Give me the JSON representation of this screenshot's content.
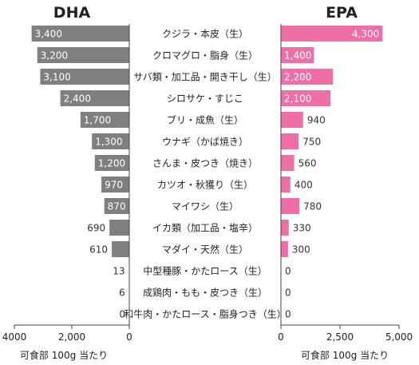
{
  "chart_data": [
    {
      "type": "bar",
      "orientation": "horizontal",
      "title": "DHA",
      "xlabel": "可食部 100g 当たり",
      "xlim": [
        0,
        4000
      ],
      "xticks": [
        "4000",
        "2,000",
        "0"
      ],
      "x_reversed": true,
      "bar_color": "#7f7f7f",
      "categories": [
        "クジラ・本皮（生）",
        "クロマグロ・脂身（生）",
        "サバ類・加工品・開き干し（生）",
        "シロサケ・すじこ",
        "ブリ・成魚（生）",
        "ウナギ（かば焼き）",
        "さんま・皮つき（焼き）",
        "カツオ・秋獲り（生）",
        "マイワシ（生）",
        "イカ類（加工品・塩辛）",
        "マダイ・天然（生）",
        "中型種豚・かたロース（生）",
        "成鶏肉・もも・皮つき（生）",
        "和牛肉・かたロース・脂身つき（生）"
      ],
      "values": [
        3400,
        3200,
        3100,
        2400,
        1700,
        1300,
        1200,
        970,
        870,
        690,
        610,
        13,
        6,
        0
      ],
      "data_labels": [
        "3,400",
        "3,200",
        "3,100",
        "2,400",
        "1,700",
        "1,300",
        "1,200",
        "970",
        "870",
        "690",
        "610",
        "13",
        "6",
        "0"
      ]
    },
    {
      "type": "bar",
      "orientation": "horizontal",
      "title": "EPA",
      "xlabel": "可食部 100g 当たり",
      "xlim": [
        0,
        5000
      ],
      "xticks": [
        "0",
        "2,500",
        "5,000"
      ],
      "bar_color": "#ee6fa6",
      "categories": [
        "クジラ・本皮（生）",
        "クロマグロ・脂身（生）",
        "サバ類・加工品・開き干し（生）",
        "シロサケ・すじこ",
        "ブリ・成魚（生）",
        "ウナギ（かば焼き）",
        "さんま・皮つき（焼き）",
        "カツオ・秋獲り（生）",
        "マイワシ（生）",
        "イカ類（加工品・塩辛）",
        "マダイ・天然（生）",
        "中型種豚・かたロース（生）",
        "成鶏肉・もも・皮つき（生）",
        "和牛肉・かたロース・脂身つき（生）"
      ],
      "values": [
        4300,
        1400,
        2200,
        2100,
        940,
        750,
        560,
        400,
        780,
        330,
        300,
        0,
        0,
        0
      ],
      "data_labels": [
        "4,300",
        "1,400",
        "2,200",
        "2,100",
        "940",
        "750",
        "560",
        "400",
        "780",
        "330",
        "300",
        "0",
        "0",
        "0"
      ]
    }
  ]
}
